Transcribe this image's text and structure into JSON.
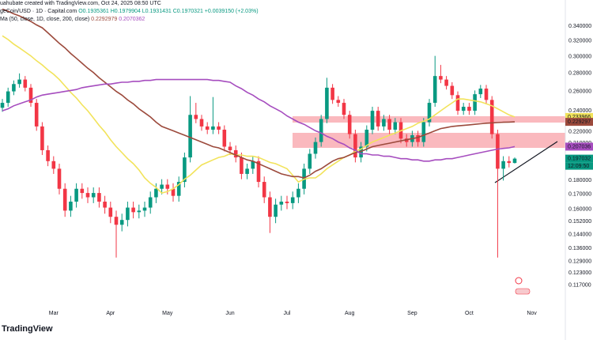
{
  "chart_data": {
    "type": "candlestick",
    "attribution": "uahubate created with TradingView.com, Oct 24, 2025 08:50 UTC",
    "symbol": "geCoin/USD · 1D · Capital.com",
    "ohlc_text": "O0.1935361 H0.1979904 L0.1931431 C0.1970321 +0.0039150 (+2.03%)",
    "indicator_legend": "Ma (50, close, 1D, close, 200, close)",
    "indicator_values": [
      0.2292979,
      0.2070362
    ],
    "brand": "TradingView",
    "countdown": "12:09:50",
    "log_scale": true,
    "grid": false,
    "up_color": "#089981",
    "down_color": "#f23645",
    "ylim": [
      0.108,
      0.379
    ],
    "yticks": [
      {
        "value": 0.34,
        "label": "0.340000"
      },
      {
        "value": 0.32,
        "label": "0.320000"
      },
      {
        "value": 0.3,
        "label": "0.300000"
      },
      {
        "value": 0.28,
        "label": "0.280000"
      },
      {
        "value": 0.26,
        "label": "0.260000"
      },
      {
        "value": 0.24,
        "label": "0.240000"
      },
      {
        "value": 0.22,
        "label": "0.220000"
      },
      {
        "value": 0.21,
        "label": "0.210000"
      },
      {
        "value": 0.19,
        "label": "0.190000"
      },
      {
        "value": 0.18,
        "label": "0.180000"
      },
      {
        "value": 0.17,
        "label": "0.170000"
      },
      {
        "value": 0.16,
        "label": "0.160000"
      },
      {
        "value": 0.152,
        "label": "0.152000"
      },
      {
        "value": 0.144,
        "label": "0.144000"
      },
      {
        "value": 0.136,
        "label": "0.136000"
      },
      {
        "value": 0.129,
        "label": "0.129000"
      },
      {
        "value": 0.123,
        "label": "0.123000"
      },
      {
        "value": 0.117,
        "label": "0.117000"
      }
    ],
    "categories": [
      null,
      null,
      null,
      null,
      null,
      null,
      null,
      null,
      null,
      "Mar",
      null,
      null,
      null,
      null,
      null,
      null,
      null,
      null,
      null,
      "Apr",
      null,
      null,
      null,
      null,
      null,
      null,
      null,
      null,
      null,
      "May",
      null,
      null,
      null,
      null,
      null,
      null,
      null,
      null,
      null,
      null,
      "Jun",
      null,
      null,
      null,
      null,
      null,
      null,
      null,
      null,
      null,
      "Jul",
      null,
      null,
      null,
      null,
      null,
      null,
      null,
      null,
      null,
      null,
      "Aug",
      null,
      null,
      null,
      null,
      null,
      null,
      null,
      null,
      null,
      null,
      "Sep",
      null,
      null,
      null,
      null,
      null,
      null,
      null,
      null,
      null,
      "Oct",
      null,
      null,
      null,
      null,
      null,
      null,
      null,
      null,
      null,
      null,
      "Nov"
    ],
    "open": [
      0.243,
      0.248,
      0.26,
      0.268,
      0.273,
      0.264,
      0.248,
      0.225,
      0.204,
      0.195,
      0.189,
      0.174,
      0.159,
      0.165,
      0.174,
      0.171,
      0.168,
      0.171,
      0.165,
      0.161,
      0.155,
      0.15,
      0.153,
      0.161,
      0.158,
      0.159,
      0.161,
      0.168,
      0.174,
      0.177,
      0.174,
      0.169,
      0.179,
      0.198,
      0.236,
      0.232,
      0.225,
      0.222,
      0.225,
      0.222,
      0.207,
      0.204,
      0.198,
      0.185,
      0.189,
      0.195,
      0.179,
      0.168,
      0.155,
      0.163,
      0.165,
      0.164,
      0.168,
      0.174,
      0.189,
      0.201,
      0.211,
      0.232,
      0.264,
      0.251,
      0.248,
      0.236,
      0.218,
      0.198,
      0.207,
      0.222,
      0.24,
      0.225,
      0.232,
      0.222,
      0.229,
      0.214,
      0.211,
      0.217,
      0.211,
      0.229,
      0.248,
      0.277,
      0.273,
      0.266,
      0.256,
      0.24,
      0.244,
      0.24,
      0.257,
      0.263,
      0.251,
      0.218,
      0.189,
      0.195,
      0.19354,
      null,
      null,
      null
    ],
    "high": [
      0.252,
      0.264,
      0.272,
      0.28,
      0.277,
      0.268,
      0.252,
      0.229,
      0.208,
      0.199,
      0.193,
      0.178,
      0.169,
      0.178,
      0.178,
      0.175,
      0.175,
      0.175,
      0.169,
      0.165,
      0.159,
      0.157,
      0.165,
      0.165,
      0.163,
      0.165,
      0.172,
      0.178,
      0.181,
      0.181,
      0.178,
      0.183,
      0.202,
      0.255,
      0.248,
      0.236,
      0.229,
      0.254,
      0.229,
      0.226,
      0.211,
      0.208,
      0.202,
      0.193,
      0.199,
      0.199,
      0.183,
      0.172,
      0.167,
      0.169,
      0.169,
      0.172,
      0.178,
      0.193,
      0.205,
      0.215,
      0.236,
      0.275,
      0.268,
      0.255,
      0.252,
      0.24,
      0.222,
      0.211,
      0.226,
      0.244,
      0.244,
      0.236,
      0.236,
      0.233,
      0.233,
      0.218,
      0.221,
      0.221,
      0.233,
      0.252,
      0.301,
      0.29,
      0.277,
      0.27,
      0.26,
      0.248,
      0.248,
      0.261,
      0.267,
      0.267,
      0.255,
      0.222,
      0.199,
      0.199,
      0.19799,
      null,
      null,
      null
    ],
    "low": [
      0.239,
      0.244,
      0.256,
      0.264,
      0.26,
      0.244,
      0.221,
      0.2,
      0.191,
      0.185,
      0.17,
      0.155,
      0.155,
      0.161,
      0.167,
      0.164,
      0.164,
      0.161,
      0.157,
      0.151,
      0.131,
      0.146,
      0.149,
      0.154,
      0.154,
      0.155,
      0.157,
      0.164,
      0.17,
      0.17,
      0.165,
      0.165,
      0.175,
      0.194,
      0.228,
      0.221,
      0.218,
      0.218,
      0.218,
      0.203,
      0.2,
      0.194,
      0.181,
      0.181,
      0.185,
      0.175,
      0.164,
      0.145,
      0.151,
      0.159,
      0.16,
      0.16,
      0.164,
      0.17,
      0.185,
      0.197,
      0.207,
      0.228,
      0.247,
      0.244,
      0.232,
      0.214,
      0.194,
      0.194,
      0.203,
      0.218,
      0.221,
      0.221,
      0.218,
      0.218,
      0.21,
      0.207,
      0.207,
      0.207,
      0.207,
      0.225,
      0.244,
      0.269,
      0.262,
      0.252,
      0.236,
      0.236,
      0.236,
      0.236,
      0.253,
      0.247,
      0.214,
      0.131,
      0.18,
      0.19,
      0.19314,
      null,
      null,
      null
    ],
    "close": [
      0.248,
      0.26,
      0.268,
      0.273,
      0.264,
      0.248,
      0.225,
      0.204,
      0.195,
      0.189,
      0.174,
      0.159,
      0.165,
      0.174,
      0.171,
      0.168,
      0.171,
      0.165,
      0.161,
      0.155,
      0.15,
      0.153,
      0.161,
      0.158,
      0.159,
      0.161,
      0.168,
      0.174,
      0.177,
      0.174,
      0.169,
      0.179,
      0.198,
      0.236,
      0.232,
      0.225,
      0.222,
      0.225,
      0.222,
      0.207,
      0.204,
      0.198,
      0.185,
      0.189,
      0.195,
      0.179,
      0.168,
      0.155,
      0.163,
      0.165,
      0.164,
      0.168,
      0.174,
      0.189,
      0.201,
      0.211,
      0.232,
      0.264,
      0.251,
      0.248,
      0.236,
      0.218,
      0.198,
      0.207,
      0.222,
      0.24,
      0.225,
      0.232,
      0.222,
      0.229,
      0.214,
      0.211,
      0.217,
      0.211,
      0.229,
      0.248,
      0.277,
      0.273,
      0.266,
      0.256,
      0.24,
      0.244,
      0.24,
      0.257,
      0.263,
      0.251,
      0.218,
      0.189,
      0.195,
      0.19354,
      0.19703,
      null,
      null,
      null
    ],
    "series": [
      {
        "color": "#f2e35b",
        "values": [
          0.327,
          0.322,
          0.316,
          0.311,
          0.306,
          0.301,
          0.295,
          0.29,
          0.284,
          0.279,
          0.273,
          0.266,
          0.259,
          0.253,
          0.246,
          0.24,
          0.233,
          0.226,
          0.22,
          0.213,
          0.207,
          0.202,
          0.197,
          0.193,
          0.188,
          0.182,
          0.178,
          0.175,
          0.171,
          0.172,
          0.174,
          0.177,
          0.181,
          0.184,
          0.188,
          0.192,
          0.194,
          0.196,
          0.198,
          0.199,
          0.201,
          0.2,
          0.2,
          0.199,
          0.199,
          0.198,
          0.196,
          0.194,
          0.193,
          0.191,
          0.189,
          0.184,
          0.179,
          0.181,
          0.182,
          0.182,
          0.185,
          0.189,
          0.192,
          0.195,
          0.198,
          0.2,
          0.203,
          0.205,
          0.208,
          0.211,
          0.213,
          0.215,
          0.217,
          0.219,
          0.221,
          0.223,
          0.225,
          0.228,
          0.23,
          0.232,
          0.236,
          0.24,
          0.244,
          0.248,
          0.252,
          0.252,
          0.251,
          0.25,
          0.249,
          0.247,
          0.245,
          0.242,
          0.239,
          0.236,
          0.23397,
          null,
          null,
          null
        ]
      },
      {
        "color": "#9c4a3c",
        "values": [
          0.365,
          0.362,
          0.358,
          0.355,
          0.351,
          0.347,
          0.342,
          0.338,
          0.331,
          0.324,
          0.317,
          0.311,
          0.304,
          0.298,
          0.292,
          0.286,
          0.281,
          0.275,
          0.27,
          0.265,
          0.26,
          0.256,
          0.251,
          0.247,
          0.242,
          0.238,
          0.234,
          0.229,
          0.225,
          0.223,
          0.221,
          0.219,
          0.217,
          0.215,
          0.213,
          0.211,
          0.209,
          0.207,
          0.206,
          0.204,
          0.202,
          0.2,
          0.198,
          0.196,
          0.195,
          0.193,
          0.191,
          0.189,
          0.187,
          0.185,
          0.184,
          0.183,
          0.183,
          0.182,
          0.184,
          0.187,
          0.189,
          0.192,
          0.195,
          0.197,
          0.198,
          0.2,
          0.202,
          0.203,
          0.205,
          0.207,
          0.208,
          0.209,
          0.21,
          0.211,
          0.212,
          0.213,
          0.214,
          0.215,
          0.217,
          0.219,
          0.221,
          0.223,
          0.224,
          0.225,
          0.2255,
          0.226,
          0.2265,
          0.227,
          0.2275,
          0.228,
          0.2283,
          0.2286,
          0.2289,
          0.2291,
          0.2293,
          null,
          null,
          null
        ]
      },
      {
        "color": "#a64dbf",
        "values": [
          0.24,
          0.242,
          0.245,
          0.247,
          0.249,
          0.251,
          0.254,
          0.256,
          0.257,
          0.258,
          0.259,
          0.26,
          0.261,
          0.262,
          0.264,
          0.265,
          0.266,
          0.267,
          0.268,
          0.268,
          0.269,
          0.27,
          0.27,
          0.271,
          0.271,
          0.272,
          0.272,
          0.273,
          0.273,
          0.273,
          0.273,
          0.273,
          0.273,
          0.273,
          0.273,
          0.273,
          0.273,
          0.272,
          0.272,
          0.271,
          0.27,
          0.266,
          0.263,
          0.259,
          0.256,
          0.252,
          0.249,
          0.245,
          0.242,
          0.239,
          0.235,
          0.232,
          0.229,
          0.227,
          0.224,
          0.221,
          0.219,
          0.216,
          0.214,
          0.211,
          0.209,
          0.206,
          0.204,
          0.201,
          0.201,
          0.2,
          0.2,
          0.199,
          0.199,
          0.198,
          0.197,
          0.197,
          0.196,
          0.196,
          0.195,
          0.195,
          0.196,
          0.196,
          0.197,
          0.197,
          0.198,
          0.199,
          0.2,
          0.201,
          0.202,
          0.203,
          0.204,
          0.205,
          0.2055,
          0.206,
          0.20704,
          null,
          null,
          null
        ]
      }
    ],
    "price_tags": [
      {
        "value": 0.233966,
        "color": "#f2e35b",
        "text_color": "#000000"
      },
      {
        "value": 0.229297,
        "color": "#9c4a3c",
        "text_color": "#ffffff"
      },
      {
        "value": 0.207036,
        "color": "#a64dbf",
        "text_color": "#ffffff"
      },
      {
        "value": 0.197032,
        "color": "#089981",
        "text_color": "#ffffff"
      }
    ]
  }
}
